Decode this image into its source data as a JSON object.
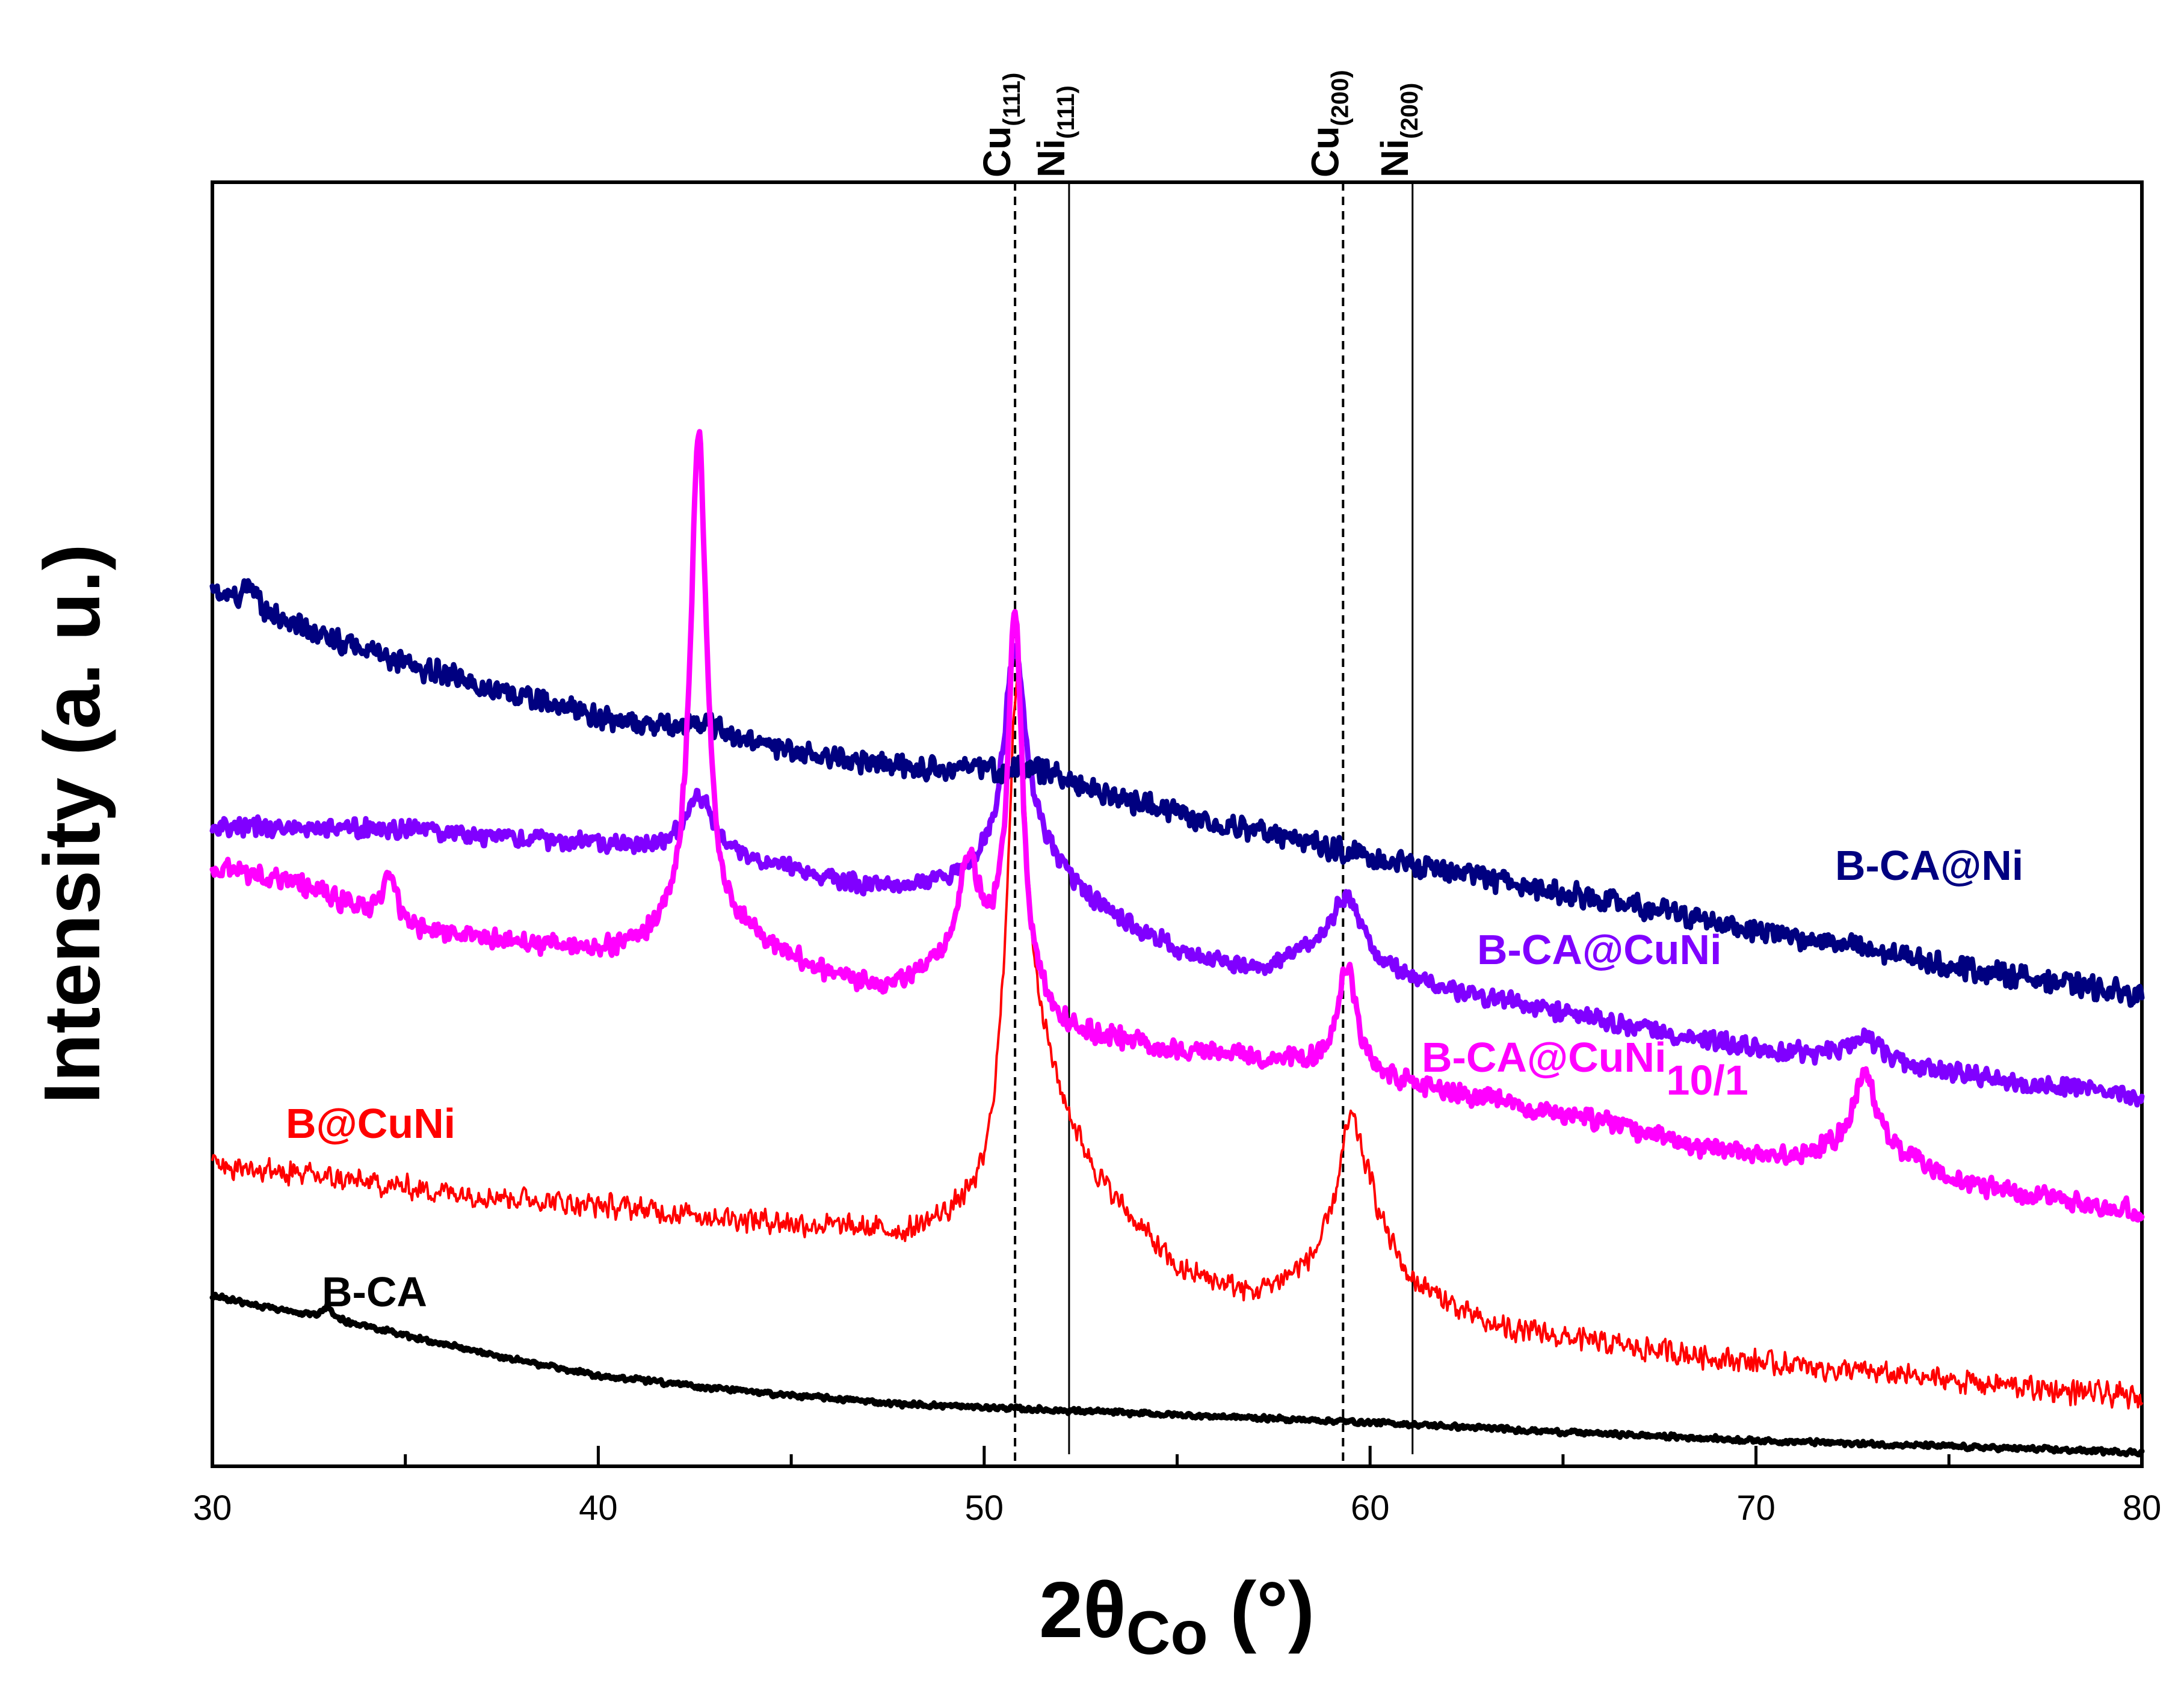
{
  "chart_data": {
    "type": "line",
    "title": "",
    "xlabel_main": "2θ",
    "xlabel_sub": "Co",
    "xlabel_unit": " (°)",
    "ylabel": "Intensity (a. u.)",
    "xlim": [
      30,
      80
    ],
    "ylim": [
      0,
      100
    ],
    "xticks": [
      30,
      40,
      50,
      60,
      70,
      80
    ],
    "xtick_labels": [
      "30",
      "40",
      "50",
      "60",
      "70",
      "80"
    ],
    "grid": false,
    "reference_lines": [
      {
        "element": "Cu",
        "plane": "(111)",
        "x": 50.8,
        "style": "dashed"
      },
      {
        "element": "Ni",
        "plane": "(111)",
        "x": 52.2,
        "style": "solid"
      },
      {
        "element": "Cu",
        "plane": "(200)",
        "x": 59.3,
        "style": "dashed"
      },
      {
        "element": "Ni",
        "plane": "(200)",
        "x": 61.1,
        "style": "solid"
      }
    ],
    "series": [
      {
        "name": "B-CA@Ni",
        "label_main": "B-CA@Ni",
        "label_sub": "",
        "color": "#000080",
        "width": 9,
        "noise": 1.1,
        "base": [
          [
            30,
            71.5
          ],
          [
            32,
            69
          ],
          [
            35,
            65.5
          ],
          [
            40,
            61
          ],
          [
            45,
            58
          ],
          [
            50,
            56
          ],
          [
            55,
            53
          ],
          [
            60,
            49.5
          ],
          [
            65,
            46.5
          ],
          [
            70,
            43.5
          ],
          [
            75,
            40.5
          ],
          [
            80,
            38
          ]
        ],
        "peaks": [
          [
            31,
            1.8,
            0.2
          ],
          [
            42.8,
            1.2,
            0.8
          ],
          [
            51.5,
            1.5,
            1.5
          ]
        ]
      },
      {
        "name": "B-CA@CuNi",
        "label_main": "B-CA@CuNi",
        "label_sub": "",
        "color": "#8000FF",
        "width": 9,
        "noise": 0.9,
        "base": [
          [
            30,
            52
          ],
          [
            35,
            51.8
          ],
          [
            38,
            51
          ],
          [
            40,
            50.5
          ],
          [
            44,
            49
          ],
          [
            47,
            46.8
          ],
          [
            49,
            47
          ],
          [
            50,
            47.5
          ],
          [
            53,
            44.5
          ],
          [
            55,
            41.5
          ],
          [
            57,
            40
          ],
          [
            58.5,
            41
          ],
          [
            61,
            39
          ],
          [
            65,
            36.5
          ],
          [
            70,
            33.5
          ],
          [
            75,
            31.5
          ],
          [
            80,
            29.5
          ]
        ],
        "peaks": [
          [
            42.6,
            5,
            0.45
          ],
          [
            50.8,
            19,
            0.35
          ],
          [
            51.6,
            2.5,
            0.8
          ],
          [
            59.4,
            6,
            0.5
          ],
          [
            72.8,
            2,
            0.6
          ]
        ]
      },
      {
        "name": "B-CA@CuNi10/1",
        "label_main": "B-CA@CuNi",
        "label_sub": "10/1",
        "color": "#FF00FF",
        "width": 9,
        "noise": 1.0,
        "base": [
          [
            30,
            48.5
          ],
          [
            32,
            47.5
          ],
          [
            35,
            43.5
          ],
          [
            38,
            42.3
          ],
          [
            40.5,
            41.5
          ],
          [
            42,
            43
          ],
          [
            44,
            42.5
          ],
          [
            46,
            39.5
          ],
          [
            47.5,
            38.5
          ],
          [
            49,
            40
          ],
          [
            50.3,
            40.5
          ],
          [
            52,
            35
          ],
          [
            55,
            33.3
          ],
          [
            58,
            32.5
          ],
          [
            60,
            31
          ],
          [
            63,
            29.3
          ],
          [
            66,
            27.5
          ],
          [
            69,
            25
          ],
          [
            71,
            24.5
          ],
          [
            73,
            26
          ],
          [
            75,
            22.5
          ],
          [
            78,
            21
          ],
          [
            80,
            20
          ]
        ],
        "peaks": [
          [
            34.6,
            3.5,
            0.25
          ],
          [
            42.6,
            42,
            0.25
          ],
          [
            49.6,
            9,
            0.3
          ],
          [
            50.8,
            31,
            0.22
          ],
          [
            59.4,
            9,
            0.3
          ],
          [
            72.8,
            6,
            0.3
          ]
        ]
      },
      {
        "name": "B@CuNi",
        "label_main": "B@CuNi",
        "label_sub": "",
        "color": "#FF0000",
        "width": 4,
        "noise": 1.2,
        "base": [
          [
            30,
            24
          ],
          [
            35,
            22
          ],
          [
            40,
            20.5
          ],
          [
            45,
            19
          ],
          [
            48,
            18
          ],
          [
            50,
            20
          ],
          [
            51.5,
            30
          ],
          [
            53,
            22
          ],
          [
            55,
            15
          ],
          [
            57,
            13
          ],
          [
            58.5,
            15
          ],
          [
            60,
            19
          ],
          [
            61,
            14
          ],
          [
            63,
            10.5
          ],
          [
            66,
            9
          ],
          [
            70,
            7.5
          ],
          [
            75,
            6
          ],
          [
            80,
            4.5
          ]
        ],
        "peaks": [
          [
            50.85,
            38,
            0.32
          ],
          [
            59.5,
            10,
            0.4
          ]
        ]
      },
      {
        "name": "B-CA",
        "label_main": "B-CA",
        "label_sub": "",
        "color": "#000000",
        "width": 9,
        "noise": 0.25,
        "base": [
          [
            30,
            13
          ],
          [
            32,
            11.7
          ],
          [
            34,
            10.5
          ],
          [
            36,
            9
          ],
          [
            38,
            7.6
          ],
          [
            40,
            6.4
          ],
          [
            44,
            5
          ],
          [
            48,
            4
          ],
          [
            52,
            3.5
          ],
          [
            56,
            3
          ],
          [
            60,
            2.5
          ],
          [
            65,
            1.7
          ],
          [
            70,
            1
          ],
          [
            75,
            0.5
          ],
          [
            80,
            0
          ]
        ],
        "peaks": [
          [
            33,
            1,
            0.15
          ]
        ]
      }
    ],
    "annotations": [
      "B-CA@Ni",
      "B-CA@CuNi",
      "B-CA@CuNi10/1",
      "B@CuNi",
      "B-CA"
    ]
  }
}
